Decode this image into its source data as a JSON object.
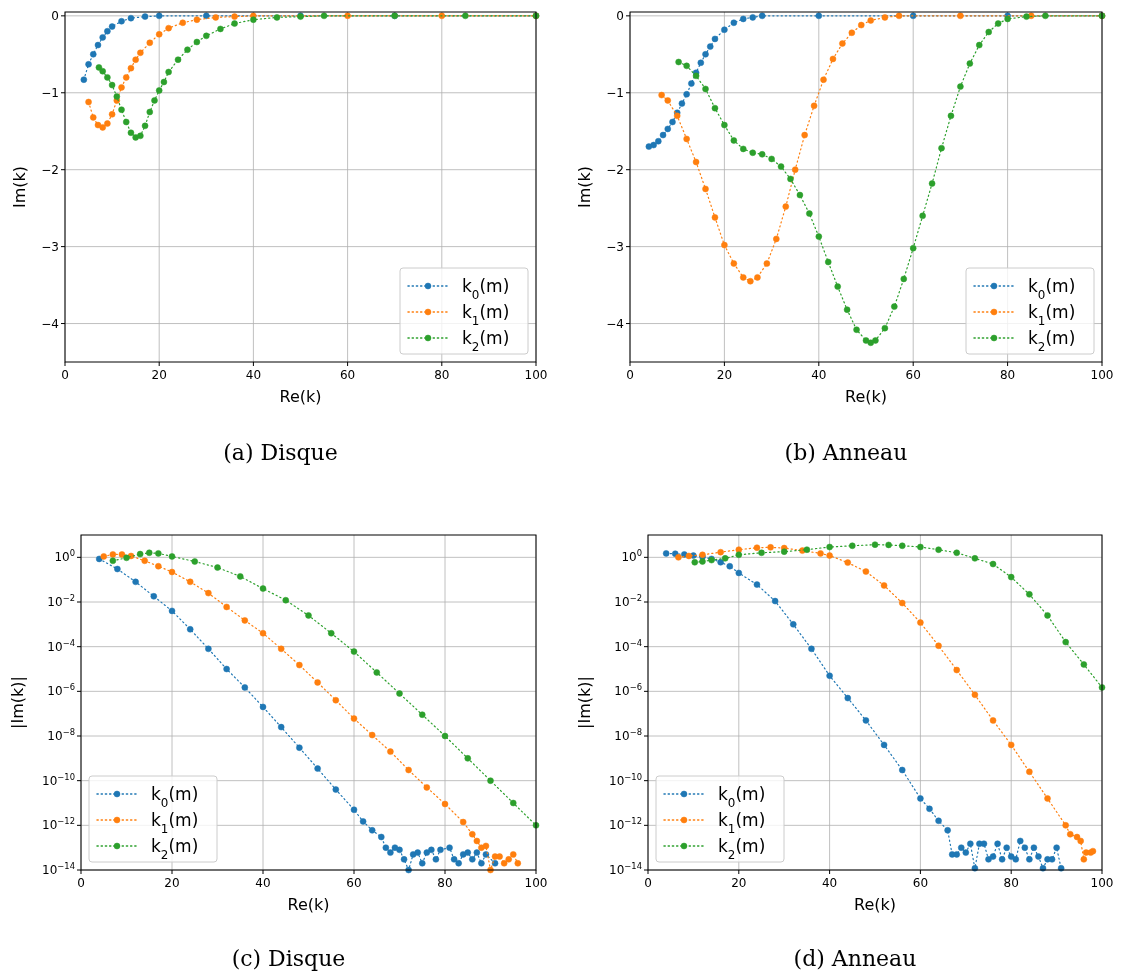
{
  "chart_data": [
    {
      "type": "line",
      "title": "(a) Disque",
      "xlabel": "Re(k)",
      "ylabel": "Im(k)",
      "xlim": [
        0,
        100
      ],
      "xticks": [
        0,
        20,
        40,
        60,
        80,
        100
      ],
      "ylim": [
        -4.5,
        0.05
      ],
      "yticks": [
        {
          "value": -4,
          "label": "−4"
        },
        {
          "value": -3,
          "label": "−3"
        },
        {
          "value": -2,
          "label": "−2"
        },
        {
          "value": -1,
          "label": "−1"
        },
        0
      ],
      "grid": true,
      "legend": "bottom right",
      "marker": "circle",
      "line_style": "dotted",
      "series": [
        {
          "name": "k$_{0}$(m)",
          "color": "#1f77b4",
          "x": [
            4,
            5,
            6,
            7,
            8,
            9,
            10,
            12,
            14,
            17,
            20,
            30,
            50,
            70,
            100
          ],
          "values": [
            -0.83,
            -0.63,
            -0.5,
            -0.38,
            -0.28,
            -0.2,
            -0.14,
            -0.07,
            -0.03,
            -0.01,
            0,
            0,
            0,
            0,
            0
          ]
        },
        {
          "name": "k$_{1}$(m)",
          "color": "#ff7f0e",
          "x": [
            5,
            6,
            7,
            8,
            9,
            10,
            11,
            12,
            13,
            14,
            15,
            16,
            18,
            20,
            22,
            25,
            28,
            32,
            36,
            40,
            60,
            80,
            100
          ],
          "values": [
            -1.12,
            -1.32,
            -1.42,
            -1.45,
            -1.4,
            -1.28,
            -1.1,
            -0.93,
            -0.8,
            -0.68,
            -0.57,
            -0.48,
            -0.35,
            -0.24,
            -0.16,
            -0.09,
            -0.05,
            -0.02,
            -0.01,
            0,
            0,
            0,
            0
          ]
        },
        {
          "name": "k$_{2}$(m)",
          "color": "#2ca02c",
          "x": [
            7.2,
            8,
            9,
            10,
            11,
            12,
            13,
            14,
            15,
            16,
            17,
            18,
            19,
            20,
            21,
            22,
            24,
            26,
            28,
            30,
            33,
            36,
            40,
            45,
            50,
            55,
            70,
            85,
            100
          ],
          "values": [
            -0.67,
            -0.72,
            -0.8,
            -0.9,
            -1.05,
            -1.22,
            -1.38,
            -1.52,
            -1.58,
            -1.56,
            -1.43,
            -1.25,
            -1.1,
            -0.97,
            -0.86,
            -0.73,
            -0.57,
            -0.44,
            -0.34,
            -0.26,
            -0.17,
            -0.1,
            -0.05,
            -0.02,
            -0.01,
            0,
            0,
            0,
            0
          ]
        }
      ]
    },
    {
      "type": "line",
      "title": "(b) Anneau",
      "xlabel": "Re(k)",
      "ylabel": "Im(k)",
      "xlim": [
        0,
        100
      ],
      "xticks": [
        0,
        20,
        40,
        60,
        80,
        100
      ],
      "ylim": [
        -4.5,
        0.05
      ],
      "yticks": [
        {
          "value": -4,
          "label": "−4"
        },
        {
          "value": -3,
          "label": "−3"
        },
        {
          "value": -2,
          "label": "−2"
        },
        {
          "value": -1,
          "label": "−1"
        },
        0
      ],
      "grid": true,
      "legend": "bottom right",
      "marker": "circle",
      "line_style": "dotted",
      "series": [
        {
          "name": "k$_{0}$(m)",
          "color": "#1f77b4",
          "x": [
            4,
            5,
            6,
            7,
            8,
            9,
            10,
            11,
            12,
            13,
            14,
            15,
            16,
            17,
            18,
            20,
            22,
            24,
            26,
            28,
            40,
            60,
            80,
            100
          ],
          "values": [
            -1.7,
            -1.68,
            -1.63,
            -1.55,
            -1.47,
            -1.38,
            -1.26,
            -1.14,
            -1.02,
            -0.88,
            -0.74,
            -0.61,
            -0.5,
            -0.4,
            -0.3,
            -0.18,
            -0.09,
            -0.04,
            -0.02,
            0,
            0,
            0,
            0,
            0
          ]
        },
        {
          "name": "k$_{1}$(m)",
          "color": "#ff7f0e",
          "x": [
            6.7,
            8,
            10,
            12,
            14,
            16,
            18,
            20,
            22,
            24,
            25.5,
            27,
            29,
            31,
            33,
            35,
            37,
            39,
            41,
            43,
            45,
            47,
            49,
            51,
            54,
            57,
            70,
            85,
            100
          ],
          "values": [
            -1.03,
            -1.1,
            -1.3,
            -1.6,
            -1.9,
            -2.25,
            -2.62,
            -2.98,
            -3.22,
            -3.4,
            -3.45,
            -3.4,
            -3.22,
            -2.9,
            -2.48,
            -2.0,
            -1.55,
            -1.17,
            -0.83,
            -0.56,
            -0.36,
            -0.22,
            -0.12,
            -0.06,
            -0.02,
            0,
            0,
            0,
            0
          ]
        },
        {
          "name": "k$_{2}$(m)",
          "color": "#2ca02c",
          "x": [
            10.3,
            12,
            14,
            16,
            18,
            20,
            22,
            24,
            26,
            28,
            30,
            32,
            34,
            36,
            38,
            40,
            42,
            44,
            46,
            48,
            50,
            51,
            52,
            54,
            56,
            58,
            60,
            62,
            64,
            66,
            68,
            70,
            72,
            74,
            76,
            78,
            80,
            84,
            88,
            100
          ],
          "values": [
            -0.6,
            -0.65,
            -0.78,
            -0.95,
            -1.2,
            -1.42,
            -1.62,
            -1.73,
            -1.78,
            -1.8,
            -1.86,
            -1.96,
            -2.12,
            -2.33,
            -2.57,
            -2.87,
            -3.2,
            -3.52,
            -3.82,
            -4.08,
            -4.22,
            -4.25,
            -4.22,
            -4.06,
            -3.78,
            -3.42,
            -3.02,
            -2.6,
            -2.18,
            -1.72,
            -1.3,
            -0.92,
            -0.62,
            -0.38,
            -0.21,
            -0.1,
            -0.04,
            -0.01,
            0,
            0
          ]
        }
      ]
    },
    {
      "type": "line",
      "title": "(c) Disque",
      "xlabel": "Re(k)",
      "ylabel": "|Im(k)|",
      "log": "y",
      "xlim": [
        0,
        100
      ],
      "xticks": [
        0,
        20,
        40,
        60,
        80,
        100
      ],
      "ylim": [
        1e-14,
        10
      ],
      "yticks": [
        {
          "value": 1e-14,
          "label": "10$^{−14}$"
        },
        {
          "value": 1e-12,
          "label": "10$^{−12}$"
        },
        {
          "value": 1e-10,
          "label": "10$^{−10}$"
        },
        {
          "value": 1e-08,
          "label": "10$^{−8}$"
        },
        {
          "value": 1e-06,
          "label": "10$^{−6}$"
        },
        {
          "value": 0.0001,
          "label": "10$^{−4}$"
        },
        {
          "value": 0.01,
          "label": "10$^{−2}$"
        },
        {
          "value": 1,
          "label": "10$^{0}$"
        }
      ],
      "grid": true,
      "legend": "bottom left",
      "marker": "circle",
      "line_style": "dotted",
      "series": [
        {
          "name": "k$_{0}$(m)",
          "color": "#1f77b4",
          "x": [
            4,
            8,
            12,
            16,
            20,
            24,
            28,
            32,
            36,
            40,
            44,
            48,
            52,
            56,
            60,
            62,
            64,
            66,
            67,
            68,
            69,
            70,
            71,
            72,
            73,
            74,
            75,
            76,
            77,
            78,
            79,
            81,
            82,
            83,
            84,
            85,
            86,
            87,
            88,
            89,
            91
          ],
          "values": [
            0.85,
            0.3,
            0.08,
            0.018,
            0.004,
            0.0006,
            8e-05,
            1e-05,
            1.5e-06,
            2e-07,
            2.5e-08,
            3e-09,
            3.5e-10,
            4e-11,
            5e-12,
            1.5e-12,
            6e-13,
            3e-13,
            1e-13,
            6e-14,
            1e-13,
            8e-14,
            3e-14,
            1e-14,
            5e-14,
            6e-14,
            2e-14,
            6e-14,
            8e-14,
            3e-14,
            8e-14,
            1e-13,
            3e-14,
            2e-14,
            5e-14,
            6e-14,
            3e-14,
            6e-14,
            2e-14,
            5e-14,
            2e-14
          ]
        },
        {
          "name": "k$_{1}$(m)",
          "color": "#ff7f0e",
          "x": [
            5,
            7,
            9,
            11,
            14,
            17,
            20,
            24,
            28,
            32,
            36,
            40,
            44,
            48,
            52,
            56,
            60,
            64,
            68,
            72,
            76,
            80,
            84,
            86,
            87,
            88,
            89,
            90,
            91,
            92,
            93,
            94,
            95,
            96
          ],
          "values": [
            1.1,
            1.35,
            1.35,
            1.15,
            0.7,
            0.4,
            0.22,
            0.08,
            0.025,
            0.006,
            0.0015,
            0.0004,
            8e-05,
            1.5e-05,
            2.5e-06,
            4e-07,
            6e-08,
            1.1e-08,
            2e-09,
            3e-10,
            5e-11,
            9e-12,
            1.4e-12,
            4e-13,
            2e-13,
            1e-13,
            1.2e-13,
            1e-14,
            4e-14,
            4e-14,
            2e-14,
            3e-14,
            5e-14,
            2e-14
          ]
        },
        {
          "name": "k$_{2}$(m)",
          "color": "#2ca02c",
          "x": [
            7,
            10,
            13,
            15,
            17,
            20,
            25,
            30,
            35,
            40,
            45,
            50,
            55,
            60,
            65,
            70,
            75,
            80,
            85,
            90,
            95,
            100
          ],
          "values": [
            0.7,
            0.95,
            1.4,
            1.6,
            1.5,
            1.1,
            0.65,
            0.35,
            0.14,
            0.04,
            0.012,
            0.0025,
            0.0004,
            6e-05,
            7e-06,
            8e-07,
            9e-08,
            1e-08,
            1e-09,
            1e-10,
            1e-11,
            1e-12
          ]
        }
      ]
    },
    {
      "type": "line",
      "title": "(d) Anneau",
      "xlabel": "Re(k)",
      "ylabel": "|Im(k)|",
      "log": "y",
      "xlim": [
        0,
        100
      ],
      "xticks": [
        0,
        20,
        40,
        60,
        80,
        100
      ],
      "ylim": [
        1e-14,
        10
      ],
      "yticks": [
        {
          "value": 1e-14,
          "label": "10$^{−14}$"
        },
        {
          "value": 1e-12,
          "label": "10$^{−12}$"
        },
        {
          "value": 1e-10,
          "label": "10$^{−10}$"
        },
        {
          "value": 1e-08,
          "label": "10$^{−8}$"
        },
        {
          "value": 1e-06,
          "label": "10$^{−6}$"
        },
        {
          "value": 0.0001,
          "label": "10$^{−4}$"
        },
        {
          "value": 0.01,
          "label": "10$^{−2}$"
        },
        {
          "value": 1,
          "label": "10$^{0}$"
        }
      ],
      "grid": true,
      "legend": "bottom left",
      "marker": "circle",
      "line_style": "dotted",
      "series": [
        {
          "name": "k$_{0}$(m)",
          "color": "#1f77b4",
          "x": [
            4,
            6,
            8,
            10,
            12,
            14,
            16,
            18,
            20,
            24,
            28,
            32,
            36,
            40,
            44,
            48,
            52,
            56,
            60,
            62,
            64,
            66,
            67,
            68,
            69,
            70,
            71,
            72,
            73,
            74,
            75,
            76,
            77,
            78,
            79,
            80,
            81,
            82,
            83,
            84,
            85,
            86,
            87,
            88,
            89,
            90,
            91
          ],
          "values": [
            1.5,
            1.45,
            1.35,
            1.2,
            1.05,
            0.85,
            0.6,
            0.4,
            0.2,
            0.06,
            0.011,
            0.001,
            8e-05,
            5e-06,
            5e-07,
            5e-08,
            4e-09,
            3e-10,
            1.6e-11,
            5.5e-12,
            1.6e-12,
            6e-13,
            5e-14,
            5e-14,
            1e-13,
            6e-14,
            1.5e-13,
            1.2e-14,
            1.5e-13,
            1.5e-13,
            3e-14,
            4e-14,
            1.5e-13,
            3e-14,
            1e-13,
            4e-14,
            3e-14,
            2e-13,
            1e-13,
            3e-14,
            1e-13,
            4e-14,
            1.2e-14,
            3e-14,
            3e-14,
            1e-13,
            1.2e-14
          ]
        },
        {
          "name": "k$_{1}$(m)",
          "color": "#ff7f0e",
          "x": [
            6.7,
            9,
            12,
            16,
            20,
            24,
            27,
            30,
            34,
            38,
            40,
            44,
            48,
            52,
            56,
            60,
            64,
            68,
            72,
            76,
            80,
            84,
            88,
            92,
            93,
            94.5,
            95.3,
            96,
            96.5,
            97.5,
            98
          ],
          "values": [
            1.0,
            1.15,
            1.3,
            1.7,
            2.2,
            2.7,
            2.8,
            2.6,
            2.0,
            1.5,
            1.2,
            0.58,
            0.23,
            0.055,
            0.009,
            0.0012,
            0.00011,
            9e-06,
            7e-07,
            5e-08,
            4e-09,
            2.5e-10,
            1.6e-11,
            1e-12,
            4e-13,
            3e-13,
            2e-13,
            3e-14,
            6e-14,
            6e-14,
            7e-14
          ]
        },
        {
          "name": "k$_{2}$(m)",
          "color": "#2ca02c",
          "x": [
            10.3,
            12,
            14,
            17,
            20,
            25,
            30,
            35,
            40,
            45,
            50,
            53,
            56,
            60,
            64,
            68,
            72,
            76,
            80,
            84,
            88,
            92,
            96,
            100
          ],
          "values": [
            0.6,
            0.65,
            0.75,
            0.9,
            1.3,
            1.6,
            1.8,
            2.2,
            2.9,
            3.3,
            3.7,
            3.6,
            3.3,
            2.9,
            2.2,
            1.6,
            0.9,
            0.5,
            0.13,
            0.022,
            0.0025,
            0.00016,
            1.6e-05,
            1.5e-06
          ]
        }
      ]
    }
  ]
}
